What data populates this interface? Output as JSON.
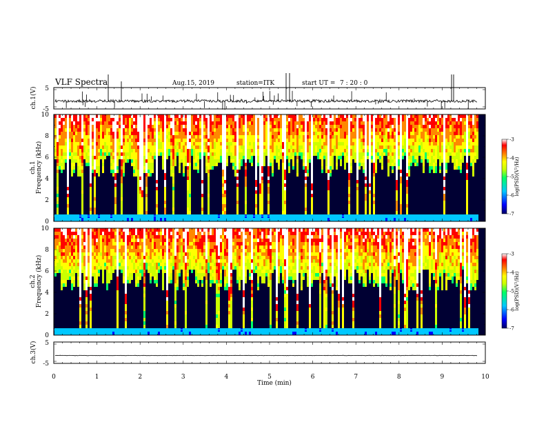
{
  "header": {
    "title": "VLF Spectra",
    "date": "Aug.15, 2019",
    "station": "station=ITK",
    "start_label": "start UT =",
    "start_time": "7 : 20 : 0"
  },
  "chart_data": [
    {
      "type": "line",
      "panel": "ch1-waveform",
      "ylabel": "ch.1(V)",
      "ylim": [
        -5,
        5
      ],
      "yticks": [
        "5",
        "-5"
      ],
      "xlim": [
        0,
        10
      ],
      "baseline": -1.3,
      "trace_color": "#000000"
    },
    {
      "type": "heatmap",
      "panel": "ch1-spectrogram",
      "ylabel_top": "ch.1",
      "ylabel": "Frequency (kHz)",
      "ylim": [
        0,
        10
      ],
      "yticks": [
        "0",
        "2",
        "4",
        "6",
        "8",
        "10"
      ],
      "xlim": [
        0,
        10
      ],
      "data_end_min": 9.82,
      "colorbar": {
        "label": "log(PSD)(V²/Hz)",
        "range": [
          -7,
          -3
        ],
        "ticks": [
          "-3",
          "-4",
          "-5",
          "-6",
          "-7"
        ]
      }
    },
    {
      "type": "heatmap",
      "panel": "ch2-spectrogram",
      "ylabel_top": "ch.2",
      "ylabel": "Frequency (kHz)",
      "ylim": [
        0,
        10
      ],
      "yticks": [
        "0",
        "2",
        "4",
        "6",
        "8",
        "10"
      ],
      "xlim": [
        0,
        10
      ],
      "data_end_min": 9.82,
      "colorbar": {
        "label": "log(PSD)(V²/Hz)",
        "range": [
          -7,
          -3
        ],
        "ticks": [
          "-3",
          "-4",
          "-5",
          "-6",
          "-7"
        ]
      }
    },
    {
      "type": "line",
      "panel": "ch3-waveform",
      "ylabel": "ch.3(V)",
      "ylim": [
        -5,
        5
      ],
      "yticks": [
        "5",
        "-5"
      ],
      "xlim": [
        0,
        10
      ],
      "baseline": -1.3,
      "trace_color": "#000000"
    }
  ],
  "xaxis": {
    "label": "Time (min)",
    "ticks": [
      "0",
      "1",
      "2",
      "3",
      "4",
      "5",
      "6",
      "7",
      "8",
      "9",
      "10"
    ]
  },
  "colors": {
    "spectrogram_background": "#000033",
    "colormap": [
      "#000066",
      "#0000ff",
      "#00c8ff",
      "#00ff66",
      "#ccff00",
      "#ffff00",
      "#ff8800",
      "#ff0000",
      "#ffffff"
    ]
  }
}
